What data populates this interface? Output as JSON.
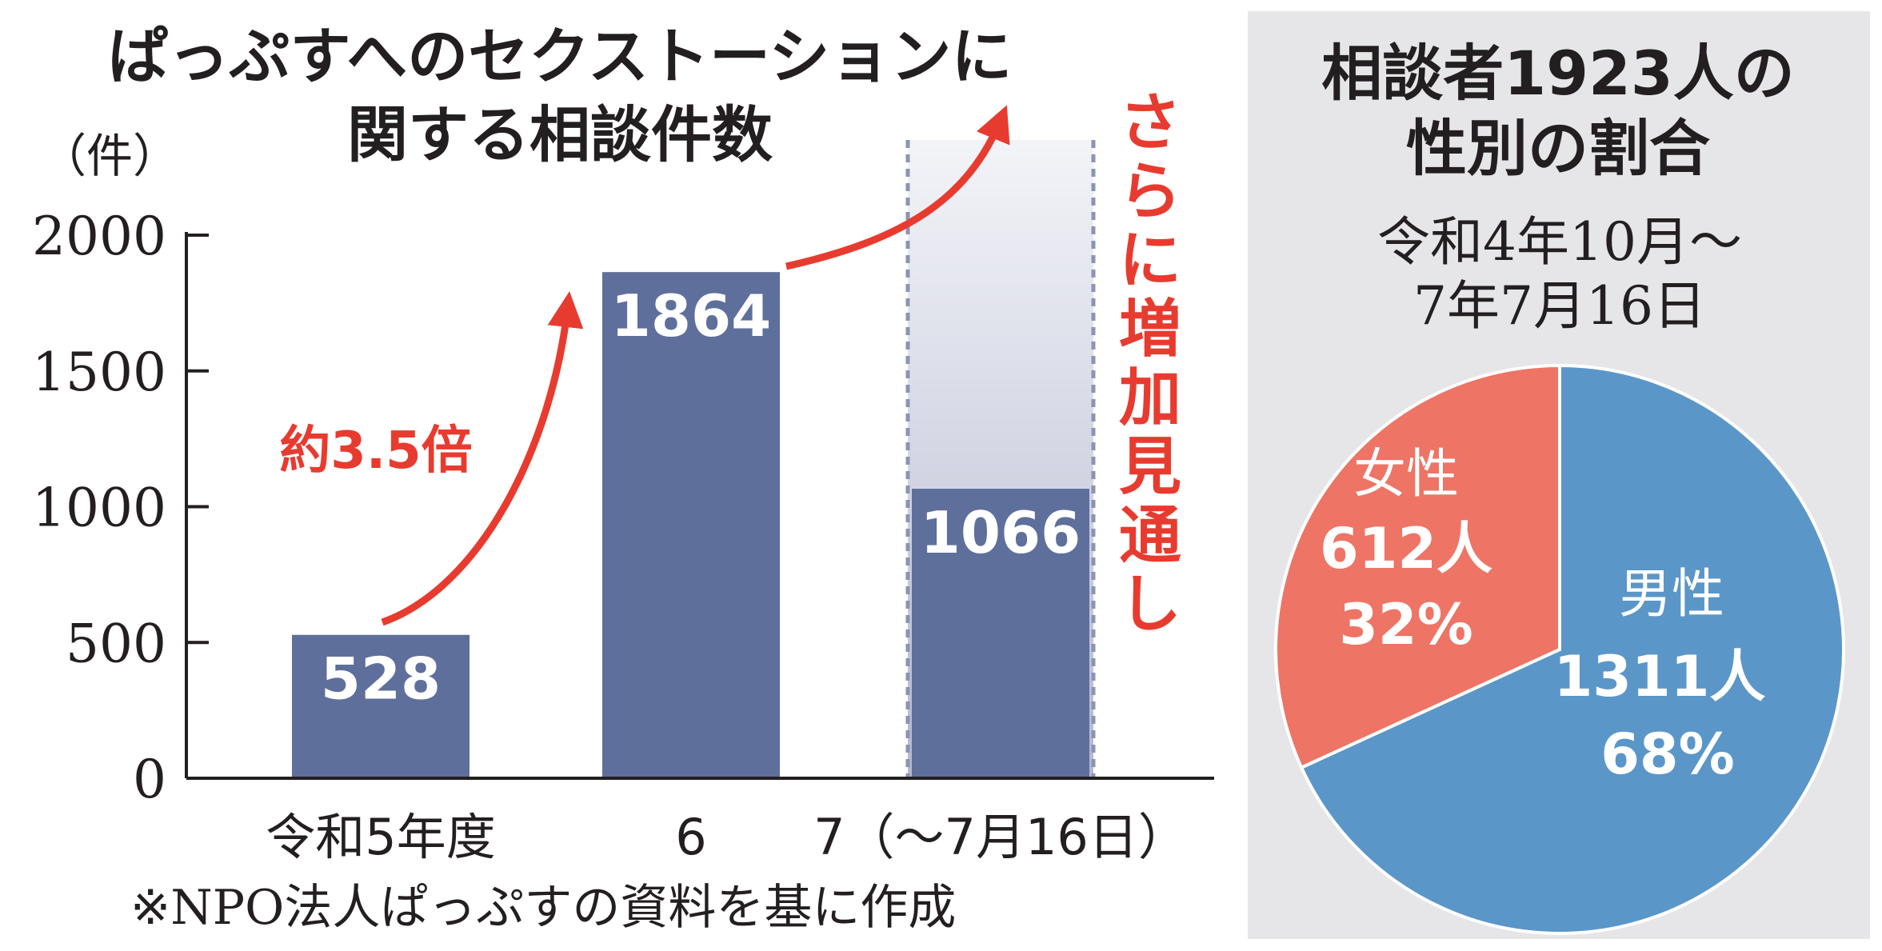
{
  "chart_data": [
    {
      "type": "bar",
      "title": "ぱっぷすへのセクストーションに関する相談件数",
      "title_lines": [
        "ぱっぷすへのセクストーションに",
        "関する相談件数"
      ],
      "ylabel": "（件）",
      "ylim": [
        0,
        2000
      ],
      "yticks": [
        "0",
        "500",
        "1000",
        "1500",
        "2000"
      ],
      "grid": false,
      "categories": [
        "令和5年度",
        "6",
        "7（〜7月16日）"
      ],
      "values": [
        528,
        1864,
        1066
      ],
      "value_labels": [
        "528",
        "1864",
        "1066"
      ],
      "projection": {
        "category_index": 2,
        "label": "さらに増加見通し",
        "label_chars": [
          "さ",
          "ら",
          "に",
          "増",
          "加",
          "見",
          "通",
          "し"
        ]
      },
      "annotations": [
        {
          "text": "約3.5倍",
          "from": 0,
          "to": 1
        }
      ],
      "source": "※NPO法人ぱっぷすの資料を基に作成"
    },
    {
      "type": "pie",
      "title": "相談者1923人の性別の割合",
      "title_lines": [
        "相談者1923人の",
        "性別の割合"
      ],
      "subtitle_lines": [
        "令和4年10月〜",
        "7年7月16日"
      ],
      "slices": [
        {
          "label": "男性",
          "count": "1311人",
          "percent": "68%",
          "value": 1311
        },
        {
          "label": "女性",
          "count": "612人",
          "percent": "32%",
          "value": 612
        }
      ]
    }
  ],
  "colors": {
    "bar": "#5e6f9c",
    "projection_top": "#f3f4f8",
    "projection_bottom": "#b4b8cf",
    "projection_border": "#8b93b5",
    "accent_red": "#e83b2f",
    "axis": "#231f20",
    "panel_bg": "#e6e6e8",
    "pie_male": "#5b96c8",
    "pie_female": "#ee7465",
    "white": "#ffffff"
  }
}
